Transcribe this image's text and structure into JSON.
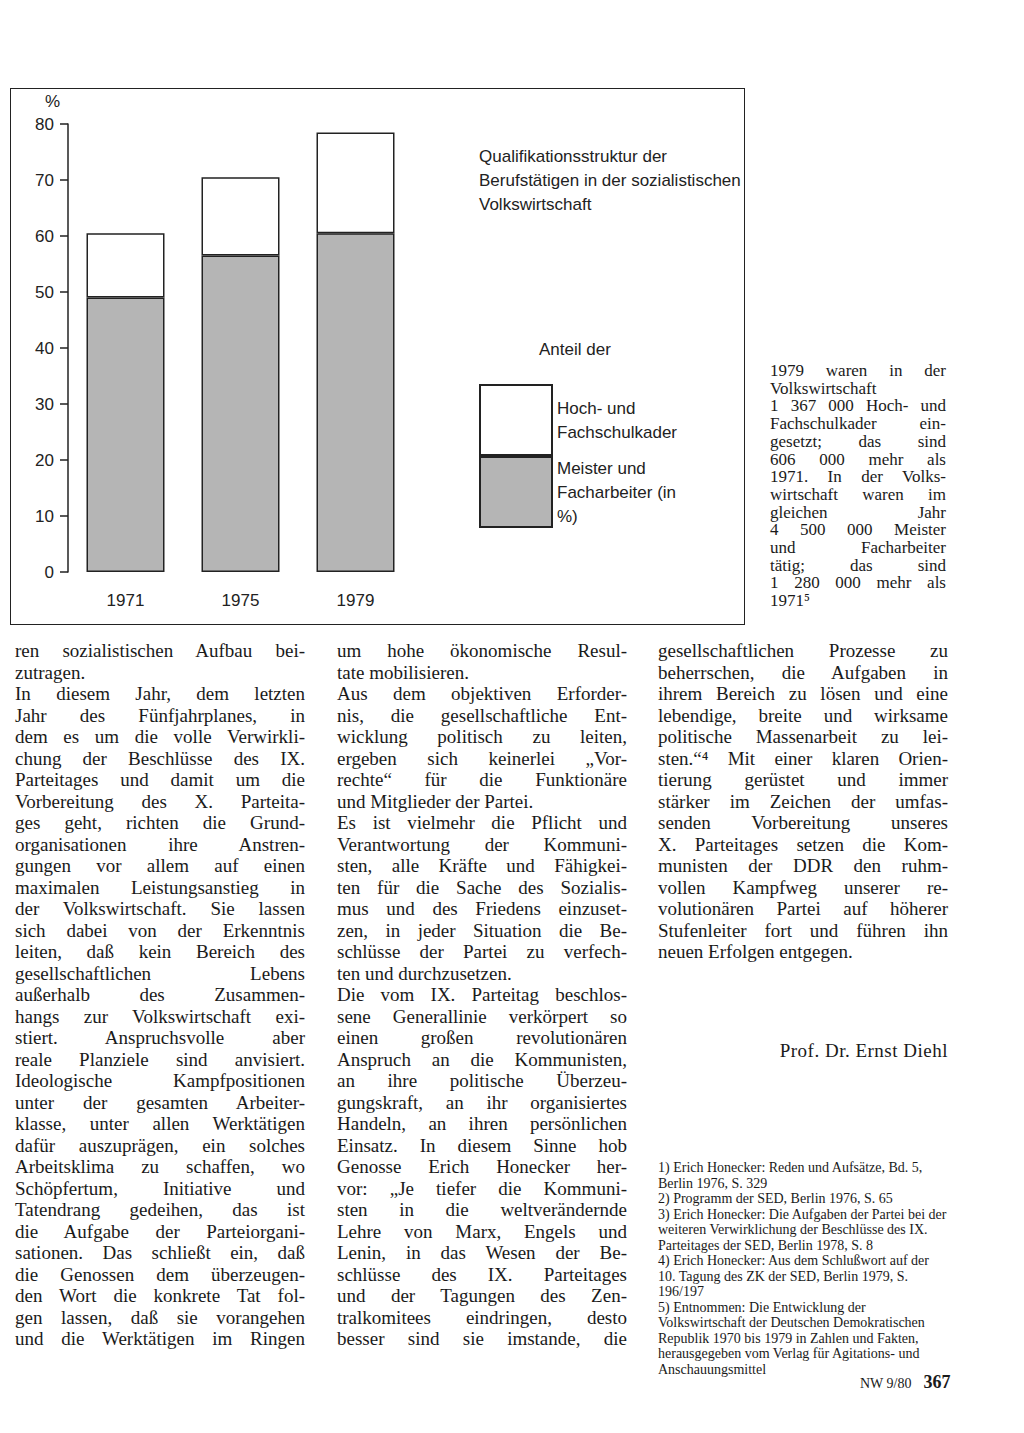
{
  "chart_data": {
    "type": "bar",
    "title": "Qualifikationsstruktur der Berufstätigen in der sozialistischen Volkswirtschaft",
    "ylabel": "%",
    "legend_title": "Anteil der",
    "stacked": true,
    "grid": false,
    "categories": [
      "1971",
      "1975",
      "1979"
    ],
    "series": [
      {
        "name": "Meister und Facharbeiter (in %)",
        "color": "#b5b5b5",
        "values": [
          49,
          56.5,
          60.5
        ]
      },
      {
        "name": "Hoch- und Fachschulkader",
        "color": "#ffffff",
        "values": [
          11.5,
          14,
          18
        ]
      }
    ],
    "ylim": [
      0,
      80
    ],
    "yticks": [
      0,
      10,
      20,
      30,
      40,
      50,
      60,
      70,
      80
    ]
  },
  "sidebar": [
    "1979 waren in der",
    "Volkswirtschaft",
    "1 367 000 Hoch- und",
    "Fachschulkader ein-",
    "gesetzt; das sind",
    "606 000 mehr als",
    "1971. In der Volks-",
    "wirtschaft waren im",
    "gleichen Jahr",
    "4 500 000 Meister",
    "und Facharbeiter",
    "tätig; das sind",
    "1 280 000 mehr als",
    "1971⁵"
  ],
  "columns": [
    [
      {
        "lines": [
          "ren sozialistischen Aufbau bei-",
          "zutragen."
        ],
        "ends": true
      },
      {
        "lines": [
          "In diesem Jahr, dem letzten",
          "Jahr des Fünfjahrplanes, in",
          "dem es um die volle Verwirkli-",
          "chung der Beschlüsse des IX.",
          "Parteitages und damit um die",
          "Vorbereitung des X. Parteita-",
          "ges geht, richten die Grund-",
          "organisationen ihre Anstren-",
          "gungen vor allem auf einen",
          "maximalen Leistungsanstieg in",
          "der Volkswirtschaft. Sie lassen",
          "sich dabei von der Erkenntnis",
          "leiten, daß kein Bereich des",
          "gesellschaftlichen Lebens",
          "außerhalb des Zusammen-",
          "hangs zur Volkswirtschaft exi-",
          "stiert. Anspruchsvolle aber",
          "reale Planziele sind anvisiert.",
          "Ideologische Kampfpositionen",
          "unter der gesamten Arbeiter-",
          "klasse, unter allen Werktätigen",
          "dafür auszuprägen, ein solches",
          "Arbeitsklima zu schaffen, wo",
          "Schöpfertum, Initiative und",
          "Tatendrang gedeihen, das ist",
          "die Aufgabe der Parteiorgani-",
          "sationen. Das schließt ein, daß",
          "die Genossen dem überzeugen-",
          "den Wort die konkrete Tat fol-",
          "gen lassen, daß sie vorangehen",
          "und die Werktätigen im Ringen"
        ],
        "ends": false
      }
    ],
    [
      {
        "lines": [
          "um hohe ökonomische Resul-",
          "tate mobilisieren."
        ],
        "ends": true
      },
      {
        "lines": [
          "Aus dem objektiven Erforder-",
          "nis, die gesellschaftliche Ent-",
          "wicklung politisch zu leiten,",
          "ergeben sich keinerlei „Vor-",
          "rechte“ für die Funktionäre",
          "und Mitglieder der Partei."
        ],
        "ends": true
      },
      {
        "lines": [
          "Es ist vielmehr die Pflicht und",
          "Verantwortung der Kommuni-",
          "sten, alle Kräfte und Fähigkei-",
          "ten für die Sache des Sozialis-",
          "mus und des Friedens einzuset-",
          "zen, in jeder Situation die Be-",
          "schlüsse der Partei zu verfech-",
          "ten und durchzusetzen."
        ],
        "ends": true
      },
      {
        "lines": [
          "Die vom IX. Parteitag beschlos-",
          "sene Generallinie verkörpert so",
          "einen großen revolutionären",
          "Anspruch an die Kommunisten,",
          "an ihre politische Überzeu-",
          "gungskraft, an ihr organisiertes",
          "Handeln, an ihren persönlichen",
          "Einsatz. In diesem Sinne hob",
          "Genosse Erich Honecker her-",
          "vor: „Je tiefer die Kommuni-",
          "sten in die weltverändernde",
          "Lehre von Marx, Engels und",
          "Lenin, in das Wesen der Be-",
          "schlüsse des IX. Parteitages",
          "und der Tagungen des Zen-",
          "tralkomitees eindringen, desto",
          "besser sind sie imstande, die"
        ],
        "ends": false
      }
    ],
    [
      {
        "lines": [
          "gesellschaftlichen Prozesse zu",
          "beherrschen, die Aufgaben in",
          "ihrem Bereich zu lösen und eine",
          "lebendige, breite und wirksame",
          "politische Massenarbeit zu lei-",
          "sten.“⁴ Mit einer klaren Orien-",
          "tierung gerüstet und immer",
          "stärker im Zeichen der umfas-",
          "senden Vorbereitung unseres",
          "X. Parteitages setzen die Kom-",
          "munisten der DDR den ruhm-",
          "vollen Kampfweg unserer re-",
          "volutionären Partei auf höherer",
          "Stufenleiter fort und führen ihn",
          "neuen Erfolgen entgegen."
        ],
        "ends": true
      }
    ]
  ],
  "author": "Prof. Dr. Ernst Diehl",
  "footnotes": [
    "1) Erich Honecker: Reden und Aufsätze, Bd. 5, Berlin 1976, S. 329",
    "2) Programm der SED, Berlin 1976, S. 65",
    "3) Erich Honecker: Die Aufgaben der Partei bei der weiteren Verwirklichung der Beschlüsse des IX. Parteitages der SED, Berlin 1978, S. 8",
    "4) Erich Honecker: Aus dem Schlußwort auf der 10. Tagung des ZK der SED, Berlin 1979, S. 196/197",
    "5) Entnommen: Die Entwicklung der Volkswirtschaft der Deutschen Demokratischen Republik 1970 bis 1979 in Zahlen und Fakten, herausgegeben vom Verlag für Agitations- und Anschauungsmittel"
  ],
  "footer": {
    "issue": "NW 9/80",
    "page": "367"
  }
}
